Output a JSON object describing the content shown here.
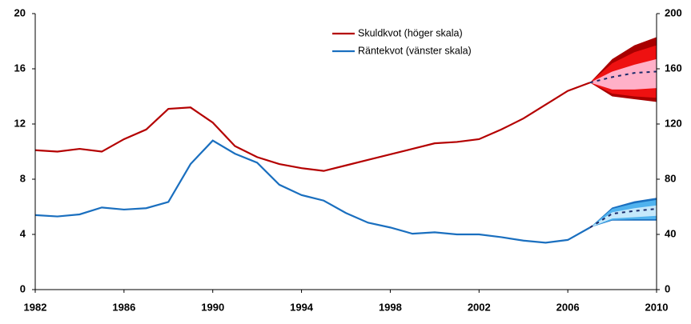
{
  "chart_data": {
    "type": "line",
    "x": [
      1982,
      1983,
      1984,
      1985,
      1986,
      1987,
      1988,
      1989,
      1990,
      1991,
      1992,
      1993,
      1994,
      1995,
      1996,
      1997,
      1998,
      1999,
      2000,
      2001,
      2002,
      2003,
      2004,
      2005,
      2006,
      2007
    ],
    "series": [
      {
        "name": "Skuldkvot (höger skala)",
        "color": "#b40000",
        "axis": "y2",
        "values": [
          101,
          100,
          102,
          100,
          109,
          116,
          131,
          132,
          121,
          104,
          96,
          91,
          88,
          86,
          90,
          94,
          98,
          102,
          106,
          107,
          109,
          116,
          124,
          134,
          144,
          150
        ]
      },
      {
        "name": "Räntekvot (vänster skala)",
        "color": "#1a6fbf",
        "values": [
          5.4,
          5.3,
          5.45,
          5.95,
          5.8,
          5.9,
          6.35,
          9.1,
          10.8,
          9.85,
          9.2,
          7.6,
          6.85,
          6.45,
          5.55,
          4.85,
          4.5,
          4.05,
          4.15,
          4.0,
          4.0,
          3.8,
          3.55,
          3.4,
          3.6,
          4.5
        ]
      }
    ],
    "forecast": [
      {
        "axis": "y2",
        "color": "#b40000",
        "x": [
          2007,
          2008,
          2009,
          2010
        ],
        "median": [
          150,
          154,
          157,
          158
        ],
        "bands": [
          {
            "color": "#a80000",
            "upper": [
              150,
              167,
              177,
              183
            ],
            "lower": [
              150,
              140,
              138,
              136
            ]
          },
          {
            "color": "#ee1111",
            "upper": [
              150,
              164,
              172,
              177
            ],
            "lower": [
              150,
              142,
              140,
              139
            ]
          },
          {
            "color": "#ffb0c8",
            "upper": [
              150,
              158,
              163,
              167
            ],
            "lower": [
              150,
              145,
              145,
              146
            ]
          }
        ]
      },
      {
        "color": "#1a6fbf",
        "x": [
          2007,
          2008,
          2009,
          2010
        ],
        "median": [
          4.5,
          5.5,
          5.7,
          5.85
        ],
        "bands": [
          {
            "color": "#1a6fbf",
            "upper": [
              4.5,
              5.95,
              6.4,
              6.65
            ],
            "lower": [
              4.5,
              5.0,
              5.0,
              5.0
            ]
          },
          {
            "color": "#4fb2ee",
            "upper": [
              4.5,
              5.85,
              6.25,
              6.5
            ],
            "lower": [
              4.5,
              5.05,
              5.1,
              5.1
            ]
          },
          {
            "color": "#c5e8fb",
            "upper": [
              4.5,
              5.6,
              5.9,
              6.1
            ],
            "lower": [
              4.5,
              5.15,
              5.25,
              5.35
            ]
          }
        ]
      }
    ],
    "xlim": [
      1982,
      2010
    ],
    "xticks": [
      1982,
      1986,
      1990,
      1994,
      1998,
      2002,
      2006,
      2010
    ],
    "ylim": [
      0,
      20
    ],
    "yticks": [
      0,
      4,
      8,
      12,
      16,
      20
    ],
    "y2lim": [
      0,
      200
    ],
    "y2ticks": [
      0,
      40,
      80,
      120,
      160,
      200
    ],
    "grid": false
  }
}
